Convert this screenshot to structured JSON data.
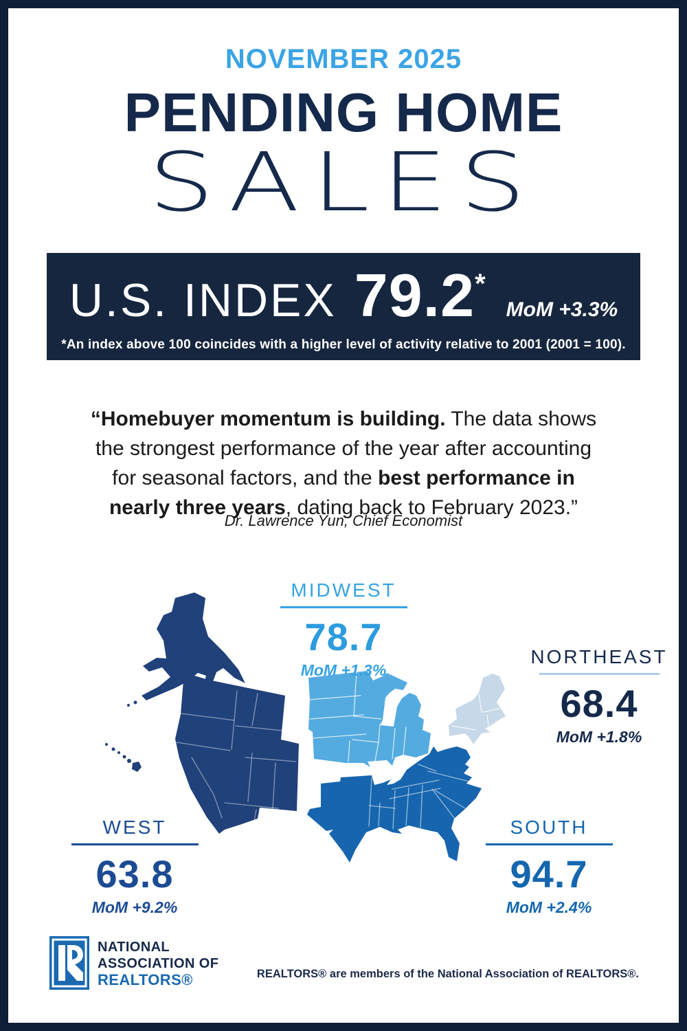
{
  "header": {
    "kicker": "NOVEMBER 2025",
    "title_line1": "PENDING HOME",
    "title_line2": "SALES"
  },
  "index_banner": {
    "label": "U.S. INDEX",
    "value": "79.2",
    "asterisk": "*",
    "mom": "MoM +3.3%",
    "footnote": "*An index above 100 coincides with a higher level of activity relative to 2001 (2001 = 100)."
  },
  "quote": {
    "lines": [
      [
        {
          "t": "“Homebuyer momentum is building.",
          "b": true
        },
        {
          "t": " The data shows",
          "b": false
        }
      ],
      [
        {
          "t": "the strongest performance of the year after accounting",
          "b": false
        }
      ],
      [
        {
          "t": "for seasonal factors, and the ",
          "b": false
        },
        {
          "t": "best performance in",
          "b": true
        }
      ],
      [
        {
          "t": "nearly three years",
          "b": true
        },
        {
          "t": ", dating back to February 2023.”",
          "b": false
        }
      ]
    ],
    "attribution": "Dr. Lawrence Yun, Chief Economist"
  },
  "regions": [
    {
      "id": "midwest",
      "name": "MIDWEST",
      "value": "78.7",
      "mom": "MoM +1.3%"
    },
    {
      "id": "northeast",
      "name": "NORTHEAST",
      "value": "68.4",
      "mom": "MoM +1.8%"
    },
    {
      "id": "west",
      "name": "WEST",
      "value": "63.8",
      "mom": "MoM +9.2%"
    },
    {
      "id": "south",
      "name": "SOUTH",
      "value": "94.7",
      "mom": "MoM +2.4%"
    }
  ],
  "footer": {
    "org_line1": "NATIONAL",
    "org_line2": "ASSOCIATION OF",
    "org_line3": "REALTORS®",
    "disclaimer": "REALTORS® are members of the National Association of REALTORS®."
  },
  "colors": {
    "frame_navy": "#101F38",
    "accent_light_blue": "#3BA4E5",
    "headline_navy": "#15294B",
    "banner_navy": "#16263F",
    "quote_text": "#1A1A1A",
    "west_fill": "#20417A",
    "midwest_fill": "#54ABE0",
    "south_fill": "#1765AE",
    "northeast_fill": "#C7D8E8",
    "west_text": "#1C4B94",
    "midwest_text": "#35A3E3",
    "midwest_value": "#2D9CDE",
    "south_text": "#1467AE",
    "northeast_text": "#15294B",
    "northeast_underline": "#AECDE6",
    "nar_blue": "#1A69B1",
    "disclaimer_navy": "#1B2A4A"
  }
}
